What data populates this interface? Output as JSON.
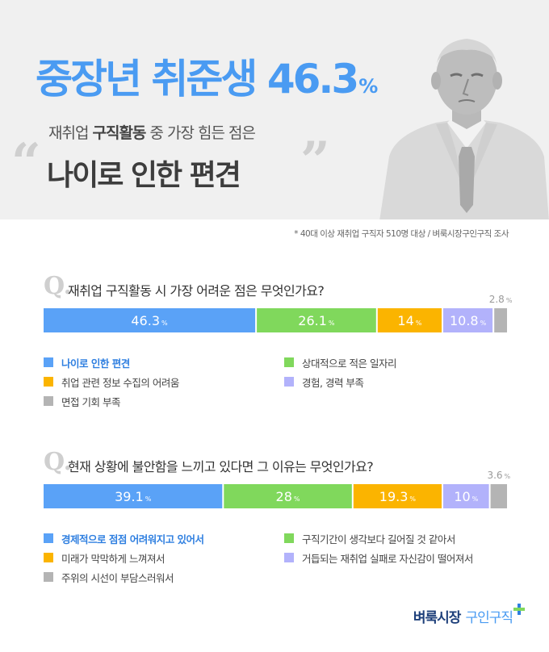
{
  "header": {
    "headline": "중장년 취준생 46.3",
    "headline_pct": "%",
    "subline_pre": "재취업 ",
    "subline_bold": "구직활동",
    "subline_post": " 중 가장 힘든 점은",
    "quote_open": "“",
    "bigline": "나이로 인한 편견",
    "quote_close": "”"
  },
  "source_note": "* 40대 이상 재취업 구직자 510명 대상 / 벼룩시장구인구직 조사",
  "questions": [
    {
      "q_mark": "Q.",
      "text": "재취업 구직활동 시 가장 어려운 점은 무엇인가요?",
      "legend": [
        "나이로 인한 편견",
        "상대적으로 적은 일자리",
        "취업 관련 정보 수집의 어려움",
        "경험, 경력 부족",
        "면접 기회 부족"
      ]
    },
    {
      "q_mark": "Q.",
      "text": "현재 상황에 불안함을 느끼고 있다면 그 이유는 무엇인가요?",
      "legend": [
        "경제적으로 점점 어려워지고 있어서",
        "구직기간이 생각보다 길어질 것 같아서",
        "미래가 막막하게 느껴져서",
        "거듭되는 재취업 실패로 자신감이 떨어져서",
        "주위의 시선이 부담스러워서"
      ]
    }
  ],
  "colors": [
    "#5aa2f7",
    "#80d85c",
    "#fbb400",
    "#b2b2fb",
    "#b4b4b4"
  ],
  "chart_data": [
    {
      "type": "bar",
      "stacked": true,
      "orientation": "horizontal",
      "unit": "%",
      "categories": [
        "나이로 인한 편견",
        "상대적으로 적은 일자리",
        "취업 관련 정보 수집의 어려움",
        "경험, 경력 부족",
        "면접 기회 부족"
      ],
      "values": [
        46.3,
        26.1,
        14,
        10.8,
        2.8
      ],
      "labels": [
        "46.3",
        "26.1",
        "14",
        "10.8",
        "2.8"
      ]
    },
    {
      "type": "bar",
      "stacked": true,
      "orientation": "horizontal",
      "unit": "%",
      "categories": [
        "경제적으로 점점 어려워지고 있어서",
        "구직기간이 생각보다 길어질 것 같아서",
        "미래가 막막하게 느껴져서",
        "거듭되는 재취업 실패로 자신감이 떨어져서",
        "주위의 시선이 부담스러워서"
      ],
      "values": [
        39.1,
        28,
        19.3,
        10,
        3.6
      ],
      "labels": [
        "39.1",
        "28",
        "19.3",
        "10",
        "3.6"
      ]
    }
  ],
  "brand": {
    "name_a": "벼룩시장",
    "name_b": "구인구직"
  }
}
